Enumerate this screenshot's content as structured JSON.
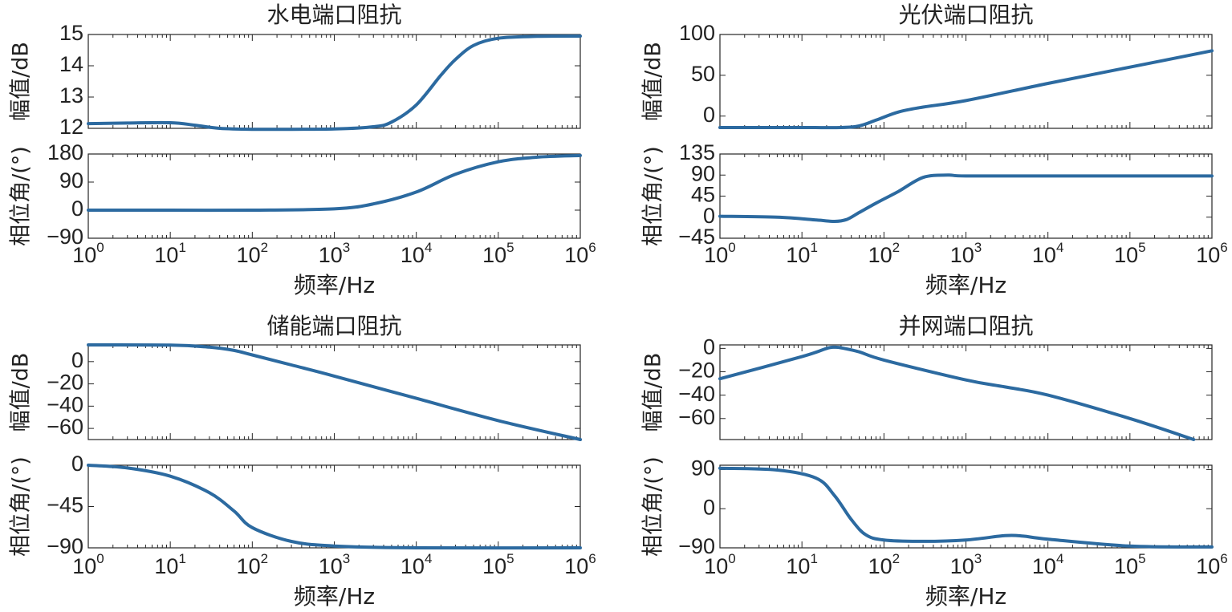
{
  "chart_data": [
    {
      "type": "line",
      "title": "水电端口阻抗",
      "xlabel": "频率/Hz",
      "xscale": "log",
      "xlim": [
        1,
        1000000
      ],
      "x_tick_base": "10",
      "x_tick_exponents": [
        "0",
        "1",
        "2",
        "3",
        "4",
        "5",
        "6"
      ],
      "magnitude": {
        "ylabel": "幅值/dB",
        "ylim": [
          12,
          15
        ],
        "yticks": [
          "12",
          "13",
          "14",
          "15"
        ],
        "series": [
          {
            "name": "幅值",
            "x": [
              1,
              3,
              10,
              20,
              40,
              100,
              300,
              1000,
              3000,
              5000,
              10000,
              20000,
              30000,
              50000,
              100000,
              300000,
              1000000
            ],
            "values": [
              12.15,
              12.17,
              12.18,
              12.1,
              12,
              11.97,
              11.97,
              11.98,
              12.05,
              12.2,
              12.75,
              13.7,
              14.2,
              14.65,
              14.88,
              14.94,
              14.95
            ]
          }
        ]
      },
      "phase": {
        "ylabel": "相位角/(°)",
        "ylim": [
          -90,
          180
        ],
        "yticks": [
          "-90",
          "0",
          "90",
          "180"
        ],
        "series": [
          {
            "name": "相位角",
            "x": [
              1,
              10,
              100,
              1000,
              3000,
              10000,
              30000,
              100000,
              300000,
              1000000
            ],
            "values": [
              0,
              0,
              0,
              4,
              20,
              58,
              115,
              155,
              170,
              175
            ]
          }
        ]
      }
    },
    {
      "type": "line",
      "title": "光伏端口阻抗",
      "xlabel": "频率/Hz",
      "xscale": "log",
      "xlim": [
        1,
        1000000
      ],
      "x_tick_base": "10",
      "x_tick_exponents": [
        "0",
        "1",
        "2",
        "3",
        "4",
        "5",
        "6"
      ],
      "magnitude": {
        "ylabel": "幅值/dB",
        "ylim": [
          -15,
          100
        ],
        "yticks": [
          "0",
          "50",
          "100"
        ],
        "series": [
          {
            "name": "幅值",
            "x": [
              1,
              10,
              30,
              50,
              80,
              150,
              300,
              1000,
              10000,
              100000,
              1000000
            ],
            "values": [
              -14,
              -14,
              -14,
              -12,
              -5,
              5,
              11,
              19,
              40,
              60,
              80
            ]
          }
        ]
      },
      "phase": {
        "ylabel": "相位角/(°)",
        "ylim": [
          -45,
          135
        ],
        "yticks": [
          "-45",
          "0",
          "45",
          "90",
          "135"
        ],
        "series": [
          {
            "name": "相位角",
            "x": [
              1,
              5,
              15,
              25,
              35,
              50,
              80,
              150,
              300,
              600,
              1000,
              10000,
              1000000
            ],
            "values": [
              2,
              0,
              -6,
              -9,
              -5,
              10,
              30,
              55,
              85,
              90,
              88,
              88,
              88
            ]
          }
        ]
      }
    },
    {
      "type": "line",
      "title": "储能端口阻抗",
      "xlabel": "频率/Hz",
      "xscale": "log",
      "xlim": [
        1,
        1000000
      ],
      "x_tick_base": "10",
      "x_tick_exponents": [
        "0",
        "1",
        "2",
        "3",
        "4",
        "5",
        "6"
      ],
      "magnitude": {
        "ylabel": "幅值/dB",
        "ylim": [
          -70,
          15
        ],
        "yticks": [
          "-60",
          "-40",
          "-20",
          "0"
        ],
        "series": [
          {
            "name": "幅值",
            "x": [
              1,
              10,
              30,
              60,
              100,
              300,
              1000,
              10000,
              100000,
              1000000
            ],
            "values": [
              15,
              14.8,
              13,
              10,
              6,
              -3,
              -13,
              -33,
              -53,
              -70
            ]
          }
        ]
      },
      "phase": {
        "ylabel": "相位角/(°)",
        "ylim": [
          -90,
          0
        ],
        "yticks": [
          "-90",
          "-45",
          "0"
        ],
        "series": [
          {
            "name": "相位角",
            "x": [
              1,
              3,
              10,
              30,
              60,
              100,
              300,
              1000,
              10000,
              1000000
            ],
            "values": [
              0,
              -3,
              -12,
              -30,
              -50,
              -68,
              -83,
              -88,
              -90,
              -90
            ]
          }
        ]
      }
    },
    {
      "type": "line",
      "title": "并网端口阻抗",
      "xlabel": "频率/Hz",
      "xscale": "log",
      "xlim": [
        1,
        1000000
      ],
      "x_tick_base": "10",
      "x_tick_exponents": [
        "0",
        "1",
        "2",
        "3",
        "4",
        "5",
        "6"
      ],
      "magnitude": {
        "ylabel": "幅值/dB",
        "ylim": [
          -78,
          3
        ],
        "yticks": [
          "-60",
          "-40",
          "-20",
          "0"
        ],
        "series": [
          {
            "name": "幅值",
            "x": [
              1,
              10,
              20,
              25,
              30,
              50,
              100,
              1000,
              3000,
              10000,
              100000,
              600000
            ],
            "values": [
              -26,
              -7,
              0,
              1,
              0.5,
              -3,
              -10,
              -27,
              -33,
              -40,
              -60,
              -78
            ]
          }
        ]
      },
      "phase": {
        "ylabel": "相位角/(°)",
        "ylim": [
          -90,
          100
        ],
        "yticks": [
          "-90",
          "0",
          "90"
        ],
        "series": [
          {
            "name": "相位角",
            "x": [
              1,
              5,
              15,
              25,
              40,
              60,
              100,
              300,
              1000,
              3000,
              5000,
              10000,
              100000,
              1000000
            ],
            "values": [
              93,
              89,
              70,
              30,
              -25,
              -60,
              -72,
              -75,
              -72,
              -62,
              -63,
              -70,
              -86,
              -88
            ]
          }
        ]
      }
    }
  ]
}
